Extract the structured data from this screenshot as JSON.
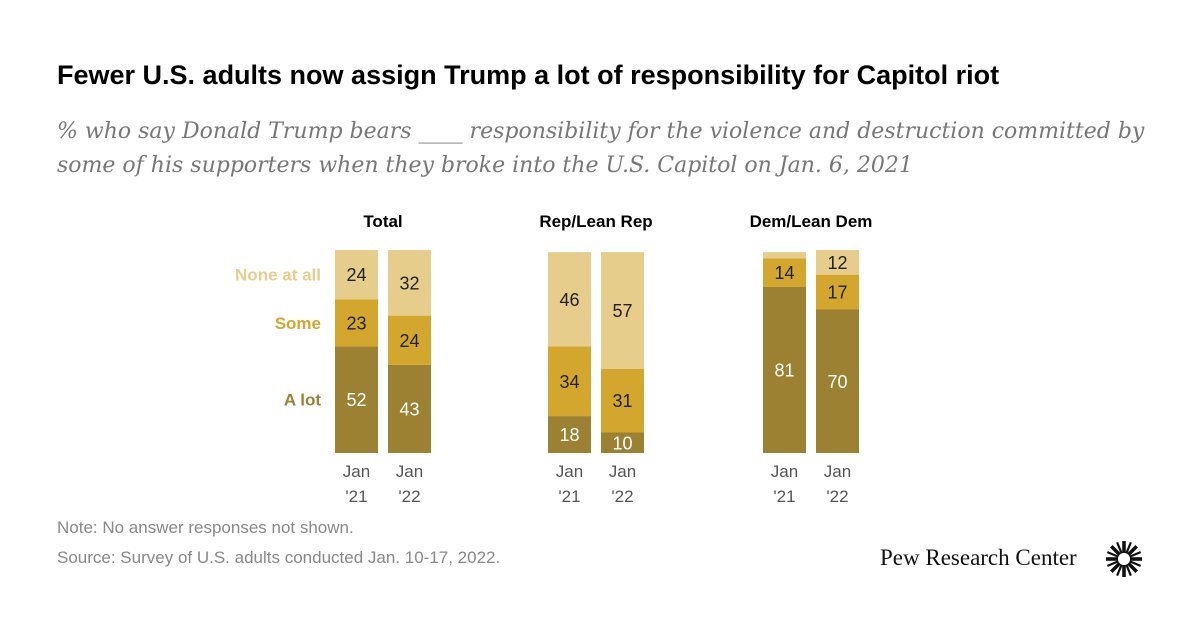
{
  "title": "Fewer U.S. adults now assign Trump a lot of responsibility for Capitol riot",
  "subtitle": "% who say Donald Trump bears ____ responsibility for the violence and destruction committed by some of his supporters when they broke into the U.S. Capitol on Jan. 6, 2021",
  "note": "Note: No answer responses not shown.",
  "source": "Source: Survey of U.S. adults conducted Jan. 10-17, 2022.",
  "brand": "Pew Research Center",
  "colors": {
    "a_lot": "#9c8132",
    "some": "#d3a72e",
    "none_at_all": "#e6cd8c",
    "value_light": "#ffffff",
    "value_dark": "#222222",
    "tick_text": "#555555"
  },
  "chart_data": {
    "type": "bar",
    "stacked": true,
    "ylim": [
      0,
      100
    ],
    "categories": [
      "Jan '21",
      "Jan '22"
    ],
    "category_lines": [
      [
        "Jan",
        "'21"
      ],
      [
        "Jan",
        "'22"
      ]
    ],
    "segment_names": [
      "None at all",
      "Some",
      "A lot"
    ],
    "panels": [
      {
        "name": "Total",
        "series": [
          {
            "name": "A lot",
            "values": [
              52,
              43
            ]
          },
          {
            "name": "Some",
            "values": [
              23,
              24
            ]
          },
          {
            "name": "None at all",
            "values": [
              24,
              32
            ]
          }
        ]
      },
      {
        "name": "Rep/Lean Rep",
        "series": [
          {
            "name": "A lot",
            "values": [
              18,
              10
            ]
          },
          {
            "name": "Some",
            "values": [
              34,
              31
            ]
          },
          {
            "name": "None at all",
            "values": [
              46,
              57
            ]
          }
        ]
      },
      {
        "name": "Dem/Lean Dem",
        "series": [
          {
            "name": "A lot",
            "values": [
              81,
              70
            ]
          },
          {
            "name": "Some",
            "values": [
              14,
              17
            ]
          },
          {
            "name": "None at all",
            "values": [
              3,
              12
            ]
          }
        ]
      }
    ]
  }
}
